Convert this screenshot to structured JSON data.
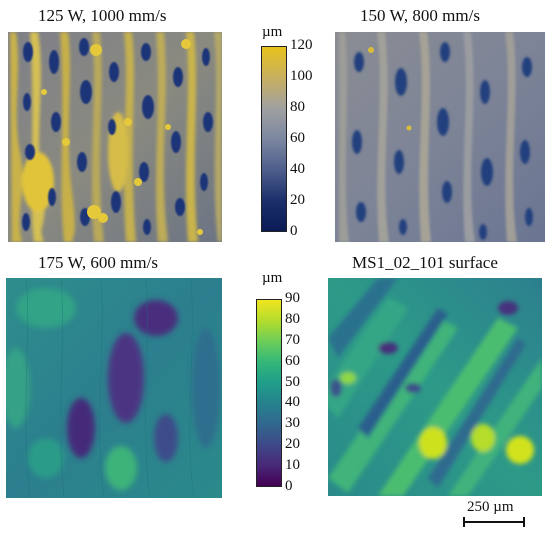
{
  "panels": {
    "top_left": {
      "title": "125 W, 1000 mm/s"
    },
    "top_right": {
      "title": "150 W, 800 mm/s"
    },
    "bottom_left": {
      "title": "175 W, 600 mm/s"
    },
    "bottom_right": {
      "title": "MS1_02_101 surface"
    }
  },
  "colorbar_top": {
    "unit": "µm",
    "ticks": [
      "120",
      "100",
      "80",
      "60",
      "40",
      "20",
      "0"
    ],
    "colors": [
      "#e8c21c",
      "#c8b060",
      "#a0a0a0",
      "#7b87a0",
      "#4e5e8c",
      "#1c2f6b",
      "#0a1a55"
    ]
  },
  "colorbar_bottom": {
    "unit": "µm",
    "ticks": [
      "90",
      "80",
      "70",
      "60",
      "50",
      "40",
      "30",
      "20",
      "10",
      "0"
    ],
    "colors": [
      "#f0e620",
      "#b4dc2c",
      "#6cce58",
      "#34b779",
      "#1f9e89",
      "#26828e",
      "#31688e",
      "#3e4989",
      "#482878",
      "#440154"
    ]
  },
  "scalebar": {
    "label": "250 µm"
  }
}
